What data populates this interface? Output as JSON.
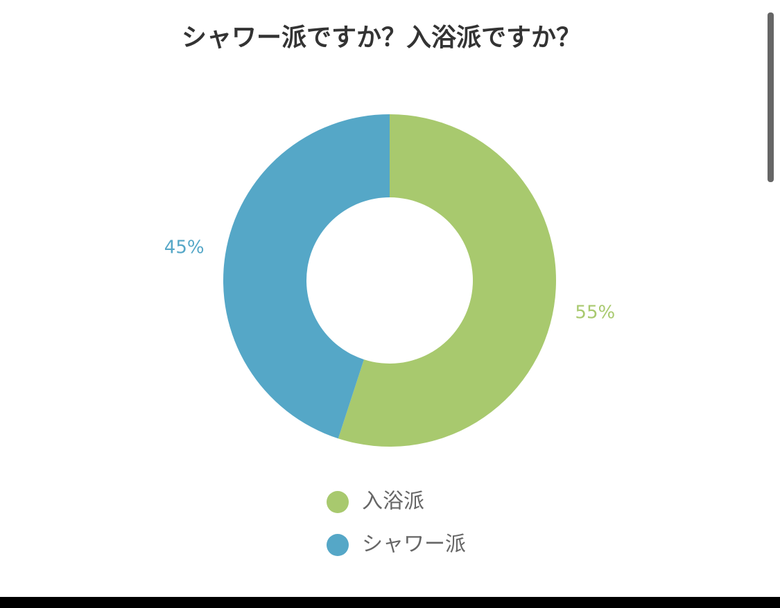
{
  "chart_data": {
    "type": "pie",
    "title": "シャワー派ですか？入浴派ですか？",
    "categories": [
      "入浴派",
      "シャワー派"
    ],
    "values": [
      55,
      45
    ],
    "value_labels": [
      "55%",
      "45%"
    ],
    "colors": [
      "#a8c96e",
      "#55a7c7"
    ],
    "donut": true,
    "legend": "bottom"
  }
}
